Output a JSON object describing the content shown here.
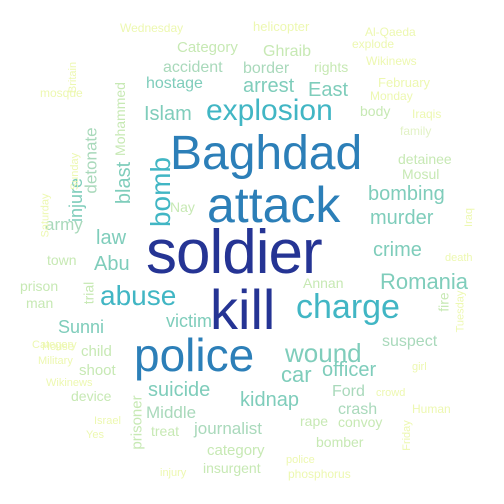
{
  "words": [
    {
      "text": "soldier",
      "color": "#253494"
    },
    {
      "text": "kill",
      "color": "#253494"
    },
    {
      "text": "attack",
      "color": "#2c7fb8"
    },
    {
      "text": "Baghdad",
      "color": "#2c7fb8"
    },
    {
      "text": "police",
      "color": "#2c7fb8"
    },
    {
      "text": "charge",
      "color": "#41b6c4"
    },
    {
      "text": "explosion",
      "color": "#41b6c4"
    },
    {
      "text": "abuse",
      "color": "#41b6c4"
    },
    {
      "text": "bomb",
      "color": "#41b6c4"
    },
    {
      "text": "wound",
      "color": "#7fcdbb"
    },
    {
      "text": "Romania",
      "color": "#7fcdbb"
    },
    {
      "text": "bombing",
      "color": "#7fcdbb"
    },
    {
      "text": "murder",
      "color": "#7fcdbb"
    },
    {
      "text": "crime",
      "color": "#7fcdbb"
    },
    {
      "text": "car",
      "color": "#7fcdbb"
    },
    {
      "text": "officer",
      "color": "#7fcdbb"
    },
    {
      "text": "kidnap",
      "color": "#7fcdbb"
    },
    {
      "text": "suicide",
      "color": "#7fcdbb"
    },
    {
      "text": "law",
      "color": "#7fcdbb"
    },
    {
      "text": "Abu",
      "color": "#7fcdbb"
    },
    {
      "text": "blast",
      "color": "#7fcdbb"
    },
    {
      "text": "injure",
      "color": "#7fcdbb"
    },
    {
      "text": "Islam",
      "color": "#7fcdbb"
    },
    {
      "text": "arrest",
      "color": "#7fcdbb"
    },
    {
      "text": "East",
      "color": "#7fcdbb"
    },
    {
      "text": "hostage",
      "color": "#7fcdbb"
    },
    {
      "text": "victim",
      "color": "#7fcdbb"
    },
    {
      "text": "Sunni",
      "color": "#7fcdbb"
    },
    {
      "text": "journalist",
      "color": "#a9d9bb"
    },
    {
      "text": "Middle",
      "color": "#a9d9bb"
    },
    {
      "text": "army",
      "color": "#a9d9bb"
    },
    {
      "text": "detonate",
      "color": "#a9d9bb"
    },
    {
      "text": "accident",
      "color": "#a9d9bb"
    },
    {
      "text": "border",
      "color": "#a9d9bb"
    },
    {
      "text": "rights",
      "color": "#c7e9b4"
    },
    {
      "text": "Ghraib",
      "color": "#c7e9b4"
    },
    {
      "text": "Category",
      "color": "#c7e9b4"
    },
    {
      "text": "suspect",
      "color": "#a9d9bb"
    },
    {
      "text": "crash",
      "color": "#a9d9bb"
    },
    {
      "text": "Ford",
      "color": "#a9d9bb"
    },
    {
      "text": "rape",
      "color": "#c7e9b4"
    },
    {
      "text": "convoy",
      "color": "#c7e9b4"
    },
    {
      "text": "bomber",
      "color": "#c7e9b4"
    },
    {
      "text": "category",
      "color": "#c7e9b4"
    },
    {
      "text": "insurgent",
      "color": "#c7e9b4"
    },
    {
      "text": "treat",
      "color": "#c7e9b4"
    },
    {
      "text": "prisoner",
      "color": "#c7e9b4"
    },
    {
      "text": "device",
      "color": "#c7e9b4"
    },
    {
      "text": "shoot",
      "color": "#c7e9b4"
    },
    {
      "text": "child",
      "color": "#c7e9b4"
    },
    {
      "text": "trial",
      "color": "#c7e9b4"
    },
    {
      "text": "town",
      "color": "#c7e9b4"
    },
    {
      "text": "prison",
      "color": "#c7e9b4"
    },
    {
      "text": "man",
      "color": "#c7e9b4"
    },
    {
      "text": "Annan",
      "color": "#c7e9b4"
    },
    {
      "text": "fire",
      "color": "#c7e9b4"
    },
    {
      "text": "Mohammed",
      "color": "#c7e9b4"
    },
    {
      "text": "Mosul",
      "color": "#c7e9b4"
    },
    {
      "text": "detainee",
      "color": "#c7e9b4"
    },
    {
      "text": "body",
      "color": "#c7e9b4"
    },
    {
      "text": "family",
      "color": "#e2f2c6"
    },
    {
      "text": "Nay",
      "color": "#c7e9b4"
    },
    {
      "text": "Wednesday",
      "color": "#edf8b1"
    },
    {
      "text": "helicopter",
      "color": "#edf8b1"
    },
    {
      "text": "explode",
      "color": "#edf8b1"
    },
    {
      "text": "Al-Qaeda",
      "color": "#edf8b1"
    },
    {
      "text": "February",
      "color": "#edf8b1"
    },
    {
      "text": "Monday",
      "color": "#edf8b1"
    },
    {
      "text": "Wikinews",
      "color": "#edf8b1"
    },
    {
      "text": "mosque",
      "color": "#edf8b1"
    },
    {
      "text": "Iraqis",
      "color": "#edf8b1"
    },
    {
      "text": "Sunday",
      "color": "#edf8b1"
    },
    {
      "text": "Britain",
      "color": "#edf8b1"
    },
    {
      "text": "Saturday",
      "color": "#edf8b1"
    },
    {
      "text": "Category",
      "color": "#edf8b1"
    },
    {
      "text": "Military",
      "color": "#edf8b1"
    },
    {
      "text": "House",
      "color": "#edf8b1"
    },
    {
      "text": "Wikinews",
      "color": "#edf8b1"
    },
    {
      "text": "Yes",
      "color": "#edf8b1"
    },
    {
      "text": "Israel",
      "color": "#edf8b1"
    },
    {
      "text": "Human",
      "color": "#edf8b1"
    },
    {
      "text": "crowd",
      "color": "#edf8b1"
    },
    {
      "text": "girl",
      "color": "#edf8b1"
    },
    {
      "text": "injury",
      "color": "#edf8b1"
    },
    {
      "text": "phosphorus",
      "color": "#edf8b1"
    },
    {
      "text": "police",
      "color": "#edf8b1"
    },
    {
      "text": "Iraq",
      "color": "#edf8b1"
    },
    {
      "text": "death",
      "color": "#edf8b1"
    },
    {
      "text": "Tuesday",
      "color": "#edf8b1"
    },
    {
      "text": "Friday",
      "color": "#edf8b1"
    }
  ]
}
